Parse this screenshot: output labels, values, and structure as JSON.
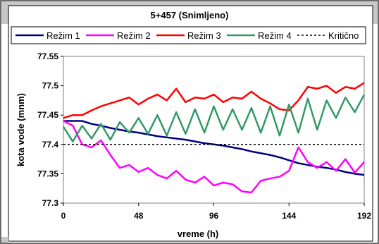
{
  "chart_data": {
    "type": "line",
    "title": "5+457 (Snimljeno)",
    "xlabel": "vreme (h)",
    "ylabel": "kota vode (mnm)",
    "xlim": [
      0,
      192
    ],
    "ylim": [
      77.3,
      77.55
    ],
    "x_ticks": [
      "0",
      "48",
      "96",
      "144",
      "192"
    ],
    "y_ticks": [
      "77.3",
      "77.35",
      "77.4",
      "77.45",
      "77.5",
      "77.55"
    ],
    "legend_position": "top",
    "grid": false,
    "x": [
      0,
      6,
      12,
      18,
      24,
      30,
      36,
      42,
      48,
      54,
      60,
      66,
      72,
      78,
      84,
      90,
      96,
      102,
      108,
      114,
      120,
      126,
      132,
      138,
      144,
      150,
      156,
      162,
      168,
      174,
      180,
      186,
      192
    ],
    "series": [
      {
        "name": "Režim 1",
        "color": "#000080",
        "dash": "",
        "values": [
          77.44,
          77.44,
          77.44,
          77.435,
          77.432,
          77.428,
          77.425,
          77.422,
          77.42,
          77.417,
          77.414,
          77.412,
          77.41,
          77.408,
          77.405,
          77.402,
          77.4,
          77.398,
          77.395,
          77.392,
          77.388,
          77.385,
          77.382,
          77.378,
          77.373,
          77.368,
          77.365,
          77.362,
          77.36,
          77.357,
          77.353,
          77.35,
          77.348
        ]
      },
      {
        "name": "Režim 2",
        "color": "#ff00ff",
        "dash": "",
        "values": [
          77.44,
          77.432,
          77.4,
          77.395,
          77.407,
          77.382,
          77.36,
          77.365,
          77.353,
          77.36,
          77.348,
          77.342,
          77.355,
          77.34,
          77.335,
          77.345,
          77.33,
          77.335,
          77.332,
          77.32,
          77.318,
          77.338,
          77.342,
          77.345,
          77.355,
          77.395,
          77.37,
          77.36,
          77.37,
          77.355,
          77.375,
          77.352,
          77.37
        ]
      },
      {
        "name": "Režim 3",
        "color": "#ff0000",
        "dash": "",
        "values": [
          77.445,
          77.45,
          77.45,
          77.458,
          77.465,
          77.47,
          77.475,
          77.48,
          77.468,
          77.478,
          77.485,
          77.475,
          77.495,
          77.472,
          77.48,
          77.478,
          77.485,
          77.472,
          77.48,
          77.478,
          77.49,
          77.478,
          77.47,
          77.46,
          77.458,
          77.475,
          77.498,
          77.495,
          77.5,
          77.488,
          77.498,
          77.495,
          77.505
        ]
      },
      {
        "name": "Režim 4",
        "color": "#339966",
        "dash": "",
        "values": [
          77.43,
          77.405,
          77.432,
          77.41,
          77.435,
          77.408,
          77.438,
          77.42,
          77.445,
          77.418,
          77.45,
          77.415,
          77.455,
          77.418,
          77.46,
          77.42,
          77.465,
          77.425,
          77.46,
          77.425,
          77.462,
          77.42,
          77.465,
          77.415,
          77.468,
          77.42,
          77.478,
          77.425,
          77.475,
          77.445,
          77.48,
          77.455,
          77.485
        ]
      },
      {
        "name": "Kritično",
        "color": "#000000",
        "dash": "3,3",
        "values": [
          77.4,
          77.4,
          77.4,
          77.4,
          77.4,
          77.4,
          77.4,
          77.4,
          77.4,
          77.4,
          77.4,
          77.4,
          77.4,
          77.4,
          77.4,
          77.4,
          77.4,
          77.4,
          77.4,
          77.4,
          77.4,
          77.4,
          77.4,
          77.4,
          77.4,
          77.4,
          77.4,
          77.4,
          77.4,
          77.4,
          77.4,
          77.4,
          77.4
        ]
      }
    ]
  }
}
